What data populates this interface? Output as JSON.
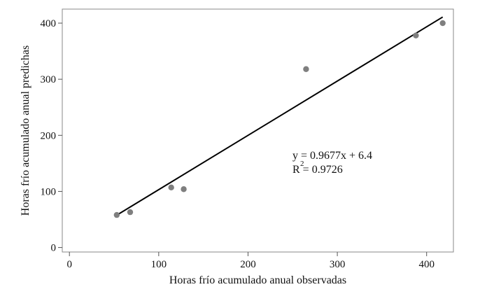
{
  "chart_data": {
    "type": "scatter",
    "title": "",
    "xlabel": "Horas frío acumulado anual observadas",
    "ylabel": "Horas frío acumulado anual predichas",
    "xlim": [
      -8,
      430
    ],
    "ylim": [
      -8,
      425
    ],
    "x_ticks": [
      0,
      100,
      200,
      300,
      400
    ],
    "y_ticks": [
      0,
      100,
      200,
      300,
      400
    ],
    "grid": false,
    "legend": "none",
    "colors": {
      "points": "#7f7f7f",
      "line": "#000000",
      "frame": "#888888"
    },
    "series": [
      {
        "x": [
          53,
          68,
          114,
          128,
          265,
          388,
          418
        ],
        "y": [
          58,
          63,
          107,
          104,
          318,
          378,
          400
        ]
      }
    ],
    "trendline": {
      "slope": 0.9677,
      "intercept": 6.4,
      "x_range": [
        53,
        418
      ],
      "equation_text": "y = 0.9677x + 6.4",
      "r2_text": "R  = 0.9726",
      "r2_superscript": "2"
    }
  }
}
